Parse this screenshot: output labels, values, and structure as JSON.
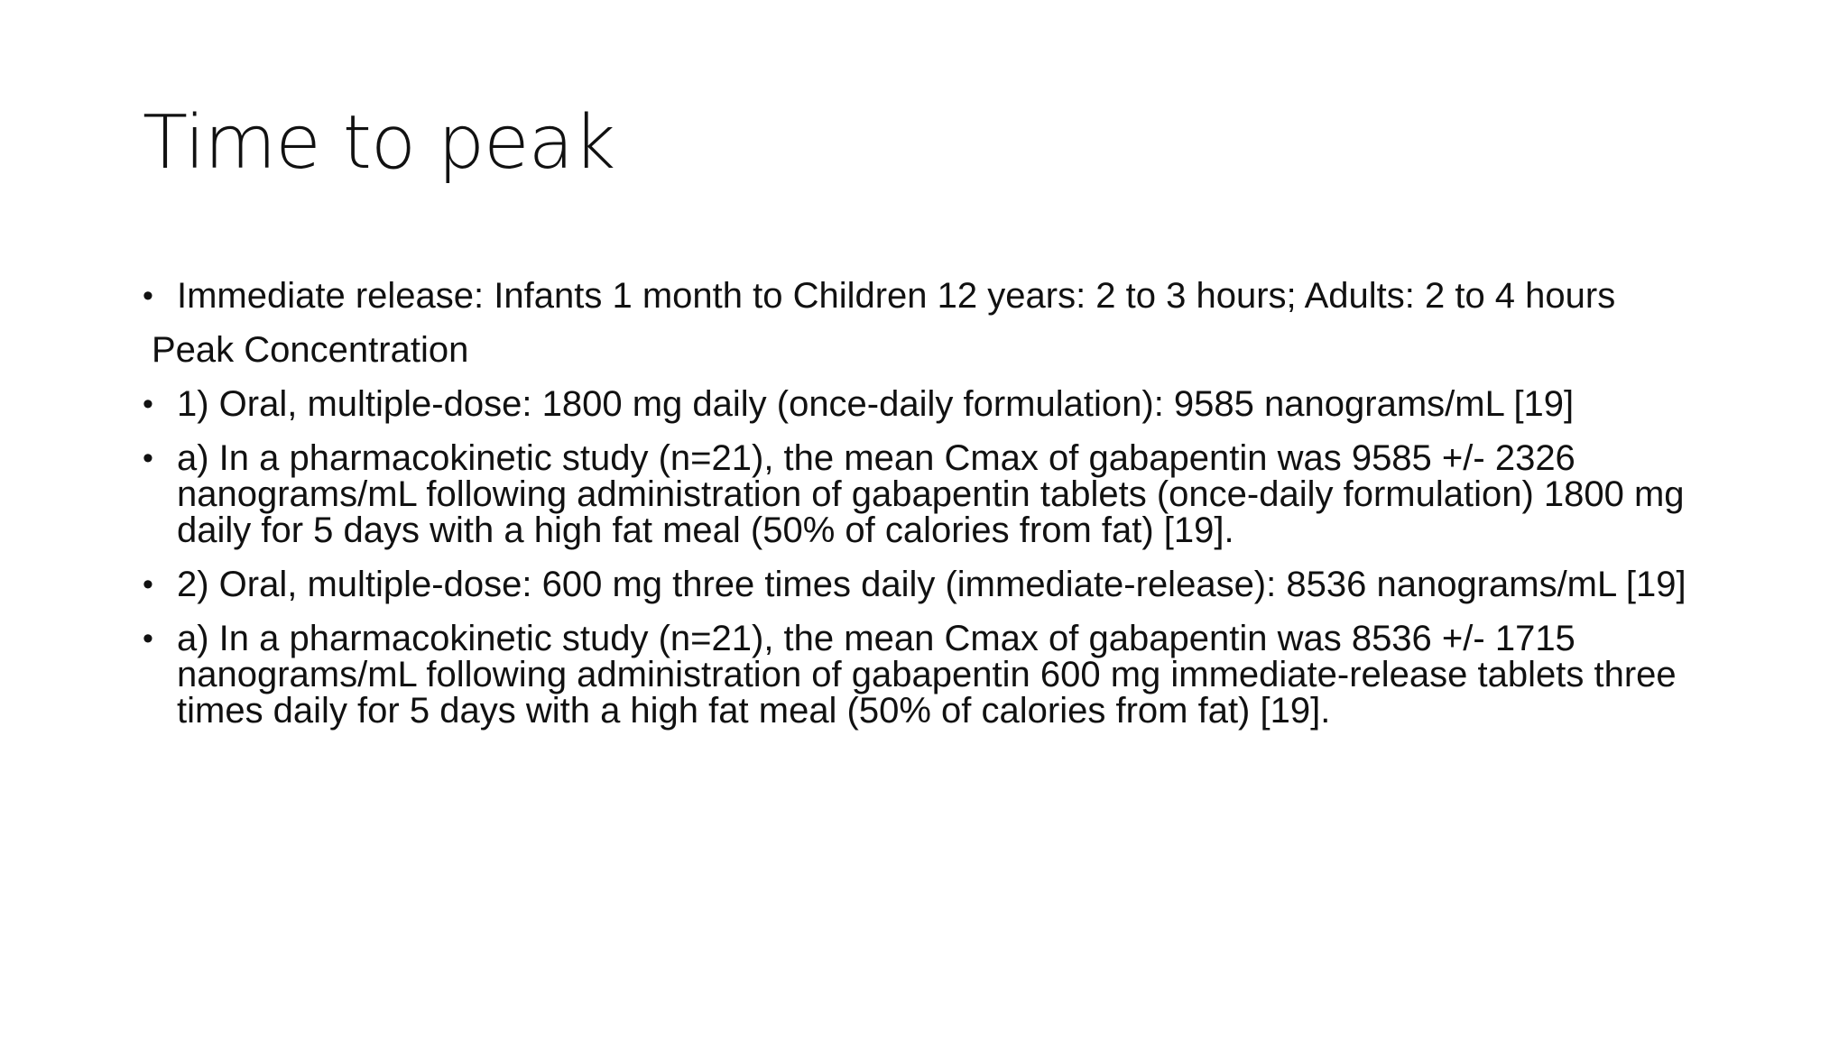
{
  "slide": {
    "title": "Time to peak",
    "items": [
      {
        "bullet": "•",
        "text": "Immediate release: Infants 1 month to Children 12 years: 2 to 3 hours; Adults: 2 to 4 hours"
      },
      {
        "text": "Peak Concentration"
      },
      {
        "bullet": "•",
        "text": "1) Oral, multiple-dose: 1800 mg daily (once-daily formulation): 9585 nanograms/mL [19]"
      },
      {
        "bullet": "•",
        "text": "a) In a pharmacokinetic study (n=21), the mean Cmax of gabapentin was 9585 +/- 2326 nanograms/mL following administration of gabapentin tablets (once-daily formulation) 1800 mg daily for 5 days with a high fat meal (50% of calories from fat) [19]."
      },
      {
        "bullet": "•",
        "text": "2) Oral, multiple-dose: 600 mg three times daily (immediate-release): 8536 nanograms/mL [19]"
      },
      {
        "bullet": "•",
        "text": "a) In a pharmacokinetic study (n=21), the mean Cmax of gabapentin was 8536 +/- 1715 nanograms/mL following administration of gabapentin 600 mg immediate-release tablets three times daily for 5 days with a high fat meal (50% of calories from fat) [19]."
      }
    ]
  }
}
